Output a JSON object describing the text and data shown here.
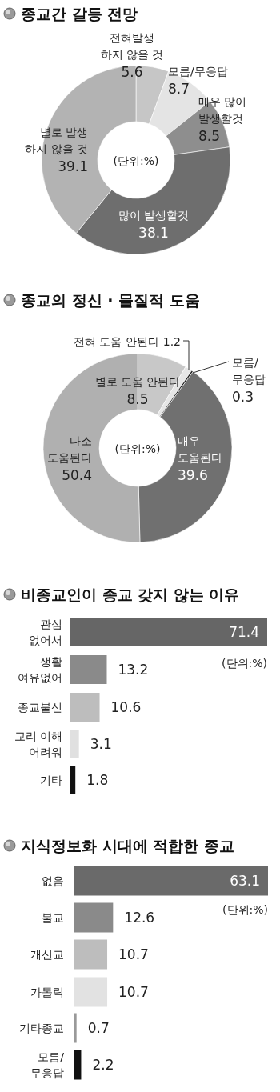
{
  "chart_data": [
    {
      "type": "donut",
      "title": "종교간 갈등 전망",
      "categories": [
        "전혀발생 하지 않을 것",
        "모름/무응답",
        "매우 많이 발생할것",
        "많이 발생할것",
        "별로 발생 하지 않을 것"
      ],
      "values": [
        5.6,
        8.7,
        8.5,
        38.1,
        39.1
      ],
      "colors": [
        "#c6c6c6",
        "#e4e4e4",
        "#8e8e8e",
        "#6e6e6e",
        "#b3b3b3"
      ],
      "data_labels": true,
      "annotations": [
        "(단위:%)"
      ]
    },
    {
      "type": "donut",
      "title": "종교의 정신 · 물질적 도움",
      "categories": [
        "별로 도움 안된다",
        "전혀 도움 안된다",
        "모름/무응답",
        "매우 도움된다",
        "다소 도움된다"
      ],
      "values": [
        8.5,
        1.2,
        0.3,
        39.6,
        50.4
      ],
      "colors": [
        "#c8c8c8",
        "#e6e6e6",
        "#222222",
        "#707070",
        "#b0b0b0"
      ],
      "data_labels": true,
      "annotations": [
        "(단위:%)"
      ]
    },
    {
      "type": "bar",
      "orientation": "horizontal",
      "title": "비종교인이 종교 갖지 않는 이유",
      "categories": [
        "관심 없어서",
        "생활 여유없어",
        "종교불신",
        "교리 이해 어려워",
        "기타"
      ],
      "values": [
        71.4,
        13.2,
        10.6,
        3.1,
        1.8
      ],
      "colors": [
        "#666666",
        "#8a8a8a",
        "#bdbdbd",
        "#e0e0e0",
        "#111111"
      ],
      "data_labels": true,
      "annotations": [
        "(단위:%)"
      ]
    },
    {
      "type": "bar",
      "orientation": "horizontal",
      "title": "지식정보화 시대에 적합한 종교",
      "categories": [
        "없음",
        "불교",
        "개신교",
        "가톨릭",
        "기타종교",
        "모름/무응답"
      ],
      "values": [
        63.1,
        12.6,
        10.7,
        10.7,
        0.7,
        2.2
      ],
      "colors": [
        "#6a6a6a",
        "#8a8a8a",
        "#bdbdbd",
        "#e2e2e2",
        "#999999",
        "#111111"
      ],
      "data_labels": true,
      "annotations": [
        "(단위:%)"
      ]
    }
  ]
}
